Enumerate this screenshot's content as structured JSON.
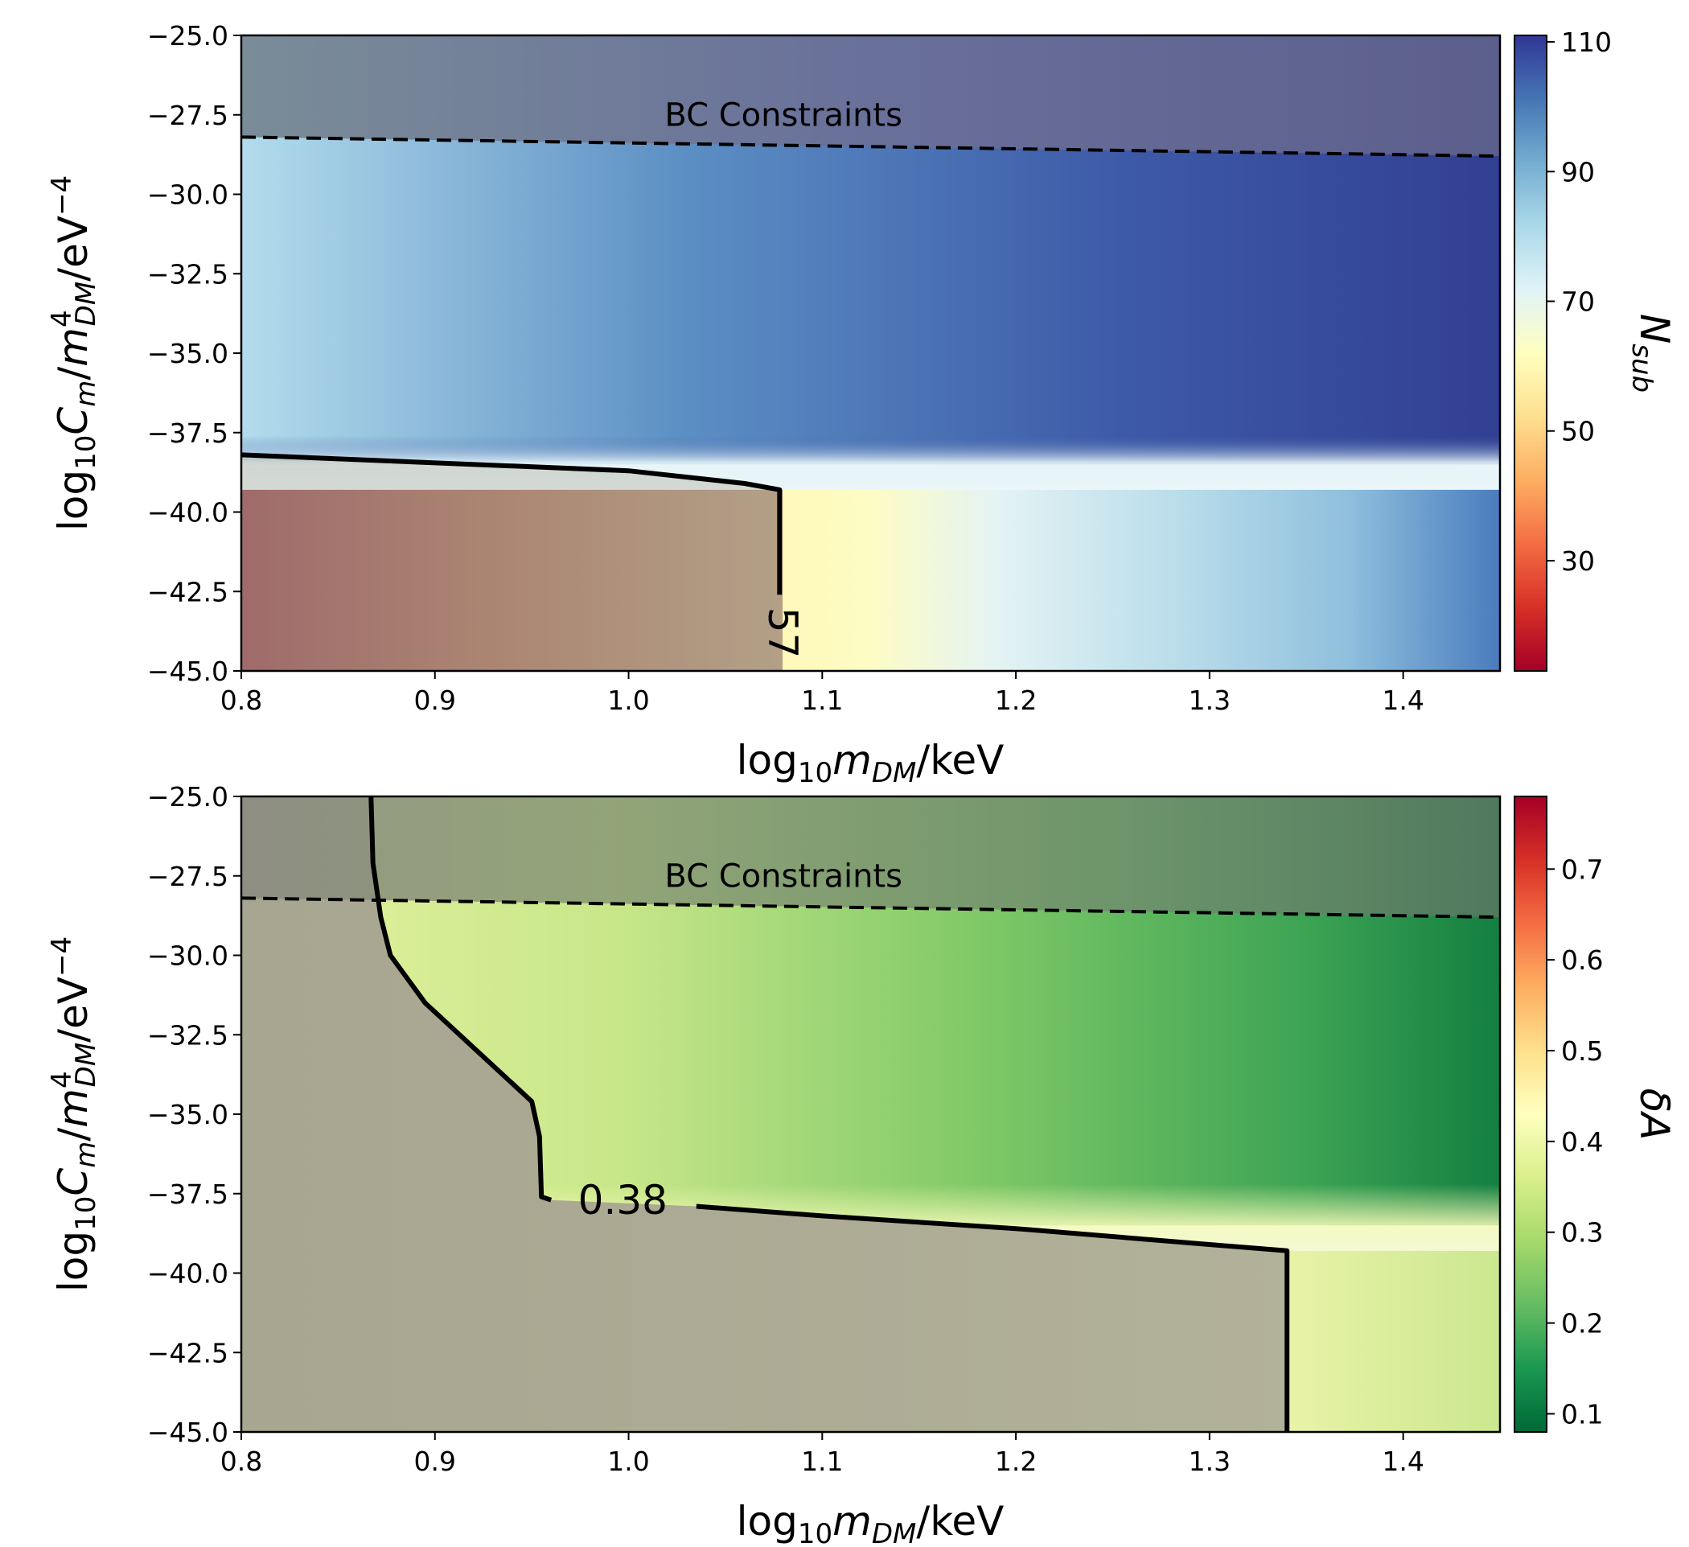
{
  "chart_data": [
    {
      "type": "heatmap",
      "title": "",
      "xlabel": "log10 mDM/keV",
      "ylabel": "log10 Cm/mDM^4/eV^-4",
      "xlim": [
        0.8,
        1.45
      ],
      "ylim": [
        -45.0,
        -25.0
      ],
      "xticks": [
        "0.8",
        "0.9",
        "1.0",
        "1.1",
        "1.2",
        "1.3",
        "1.4"
      ],
      "yticks": [
        "−25.0",
        "−27.5",
        "−30.0",
        "−32.5",
        "−35.0",
        "−37.5",
        "−40.0",
        "−42.5",
        "−45.0"
      ],
      "colorbar": {
        "label": "Nsub",
        "cmap": "RdYlBu",
        "range": [
          13,
          111
        ],
        "ticks": [
          "30",
          "50",
          "70",
          "90",
          "110"
        ]
      },
      "bc_constraint": {
        "label": "BC Constraints",
        "style": "dashed",
        "x": [
          0.8,
          1.45
        ],
        "y": [
          -28.2,
          -28.8
        ]
      },
      "contour": {
        "level_label": "57",
        "x": [
          0.8,
          1.0,
          1.06,
          1.078,
          1.078
        ],
        "y": [
          -38.2,
          -38.7,
          -39.1,
          -39.3,
          -42.6
        ]
      },
      "field_samples": {
        "x_pos": [
          0.8,
          0.9,
          1.0,
          1.08,
          1.1,
          1.2,
          1.3,
          1.45
        ],
        "low_region_values": [
          28,
          35,
          48,
          57,
          62,
          76,
          88,
          96
        ],
        "upper_region_values": [
          80,
          90,
          97,
          100,
          102,
          105,
          107,
          108
        ]
      }
    },
    {
      "type": "heatmap",
      "title": "",
      "xlabel": "log10 mDM/keV",
      "ylabel": "log10 Cm/mDM^4/eV^-4",
      "xlim": [
        0.8,
        1.45
      ],
      "ylim": [
        -45.0,
        -25.0
      ],
      "xticks": [
        "0.8",
        "0.9",
        "1.0",
        "1.1",
        "1.2",
        "1.3",
        "1.4"
      ],
      "yticks": [
        "−25.0",
        "−27.5",
        "−30.0",
        "−32.5",
        "−35.0",
        "−37.5",
        "−40.0",
        "−42.5",
        "−45.0"
      ],
      "colorbar": {
        "label": "δA",
        "cmap": "RdYlGn_r",
        "range": [
          0.08,
          0.78
        ],
        "ticks": [
          "0.1",
          "0.2",
          "0.3",
          "0.4",
          "0.5",
          "0.6",
          "0.7"
        ]
      },
      "bc_constraint": {
        "label": "BC Constraints",
        "style": "dashed",
        "x": [
          0.8,
          1.45
        ],
        "y": [
          -28.2,
          -28.8
        ]
      },
      "contour": {
        "level_label": "0.38",
        "upper_branch": {
          "x": [
            0.867,
            0.868,
            0.872,
            0.877,
            0.895,
            0.95,
            0.954,
            0.955,
            0.96
          ],
          "y": [
            -25.0,
            -27.1,
            -28.8,
            -30.0,
            -31.5,
            -34.6,
            -35.7,
            -37.6,
            -37.7
          ]
        },
        "lower_branch": {
          "x": [
            1.035,
            1.1,
            1.2,
            1.3,
            1.34,
            1.34
          ],
          "y": [
            -37.9,
            -38.2,
            -38.6,
            -39.1,
            -39.3,
            -45.0
          ]
        }
      },
      "field_samples": {
        "x_pos": [
          0.8,
          0.95,
          1.1,
          1.25,
          1.45
        ],
        "low_region_values": [
          0.76,
          0.68,
          0.56,
          0.44,
          0.34
        ],
        "upper_region_values": [
          0.4,
          0.34,
          0.25,
          0.16,
          0.08
        ]
      }
    }
  ]
}
